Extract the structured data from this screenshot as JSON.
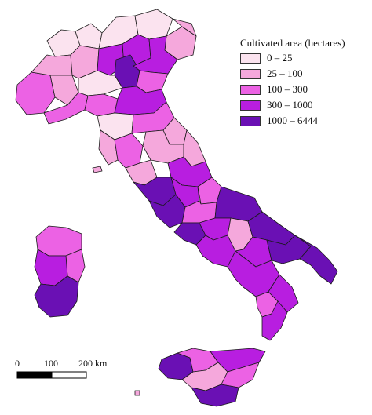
{
  "legend": {
    "title": "Cultivated area (hectares)",
    "classes": [
      {
        "label": "0 – 25",
        "color": "#fbe3ef"
      },
      {
        "label": "25 – 100",
        "color": "#f5a8dc"
      },
      {
        "label": "100 – 300",
        "color": "#ec62e4"
      },
      {
        "label": "300 – 1000",
        "color": "#b81ee0"
      },
      {
        "label": "1000 – 6444",
        "color": "#6a10b4"
      }
    ]
  },
  "scale_bar": {
    "ticks": [
      "0",
      "100",
      "200 km"
    ]
  }
}
